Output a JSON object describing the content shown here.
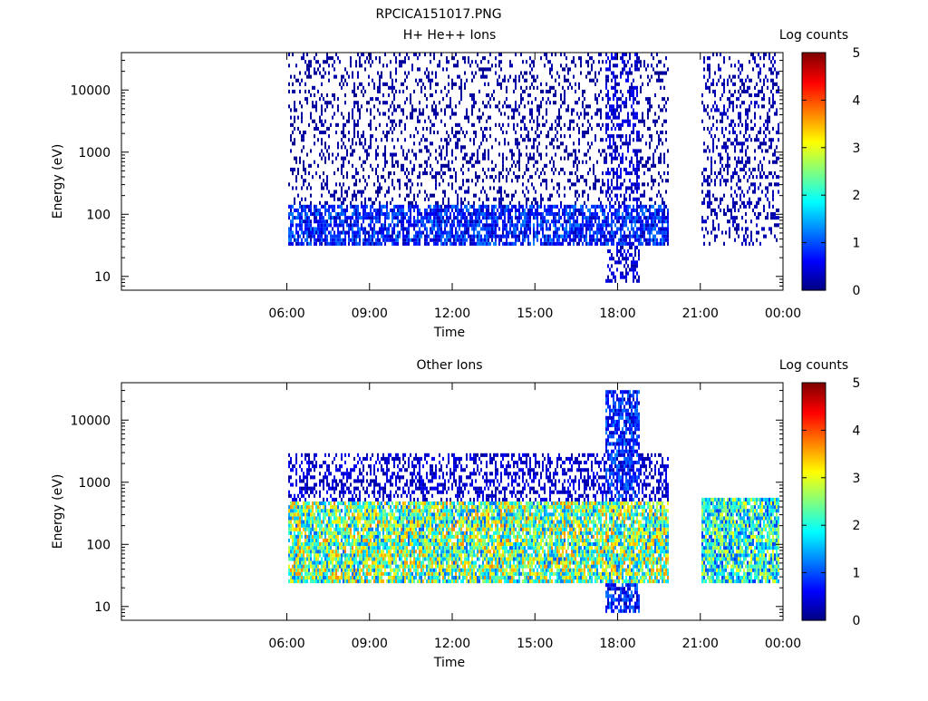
{
  "title": "RPCICA151017.PNG",
  "chart_data": [
    {
      "type": "heatmap",
      "title": "H+ He++ Ions",
      "xlabel": "Time",
      "ylabel": "Energy (eV)",
      "y_scale": "log",
      "ylim": [
        6,
        40000
      ],
      "xlim": [
        "00:00",
        "24:00"
      ],
      "x_tick_labels": [
        "06:00",
        "09:00",
        "12:00",
        "15:00",
        "18:00",
        "21:00",
        "00:00"
      ],
      "y_tick_labels": [
        "10",
        "100",
        "1000",
        "10000"
      ],
      "colorbar": {
        "label": "Log counts",
        "range": [
          0,
          5
        ],
        "tick_labels": [
          "0",
          "1",
          "2",
          "3",
          "4",
          "5"
        ]
      },
      "data_coverage": [
        [
          "06:00",
          "19:50"
        ],
        [
          "21:00",
          "23:50"
        ]
      ],
      "features": [
        {
          "time_range": [
            "06:00",
            "19:50"
          ],
          "energy_range_eV": [
            30,
            150
          ],
          "log_counts": 1.0,
          "description": "low energy band"
        },
        {
          "time_range": [
            "06:00",
            "19:50"
          ],
          "energy_range_eV": [
            150,
            40000
          ],
          "log_counts": 0.2,
          "description": "sparse high energy counts"
        },
        {
          "time_range": [
            "17:30",
            "18:45"
          ],
          "energy_range_eV": [
            8,
            40000
          ],
          "log_counts": 0.5,
          "description": "dense broad band"
        },
        {
          "time_range": [
            "21:00",
            "23:50"
          ],
          "energy_range_eV": [
            30,
            40000
          ],
          "log_counts": 0.3,
          "description": "post-gap counts"
        }
      ],
      "grid": false,
      "legend": "colorbar-right"
    },
    {
      "type": "heatmap",
      "title": "Other Ions",
      "xlabel": "Time",
      "ylabel": "Energy (eV)",
      "y_scale": "log",
      "ylim": [
        6,
        40000
      ],
      "xlim": [
        "00:00",
        "24:00"
      ],
      "x_tick_labels": [
        "06:00",
        "09:00",
        "12:00",
        "15:00",
        "18:00",
        "21:00",
        "00:00"
      ],
      "y_tick_labels": [
        "10",
        "100",
        "1000",
        "10000"
      ],
      "colorbar": {
        "label": "Log counts",
        "range": [
          0,
          5
        ],
        "tick_labels": [
          "0",
          "1",
          "2",
          "3",
          "4",
          "5"
        ]
      },
      "data_coverage": [
        [
          "06:00",
          "19:50"
        ],
        [
          "21:00",
          "23:50"
        ]
      ],
      "features": [
        {
          "time_range": [
            "06:00",
            "19:50"
          ],
          "energy_range_eV": [
            25,
            500
          ],
          "log_counts": 3.0,
          "description": "intense low energy band"
        },
        {
          "time_range": [
            "06:00",
            "19:50"
          ],
          "energy_range_eV": [
            500,
            3000
          ],
          "log_counts": 0.5,
          "description": "upper fringe"
        },
        {
          "time_range": [
            "17:30",
            "18:45"
          ],
          "energy_range_eV": [
            8,
            30000
          ],
          "log_counts": 1.0,
          "description": "broad energy extension"
        },
        {
          "time_range": [
            "21:00",
            "23:50"
          ],
          "energy_range_eV": [
            25,
            600
          ],
          "log_counts": 2.5,
          "description": "post-gap band"
        }
      ],
      "grid": false,
      "legend": "colorbar-right"
    }
  ]
}
